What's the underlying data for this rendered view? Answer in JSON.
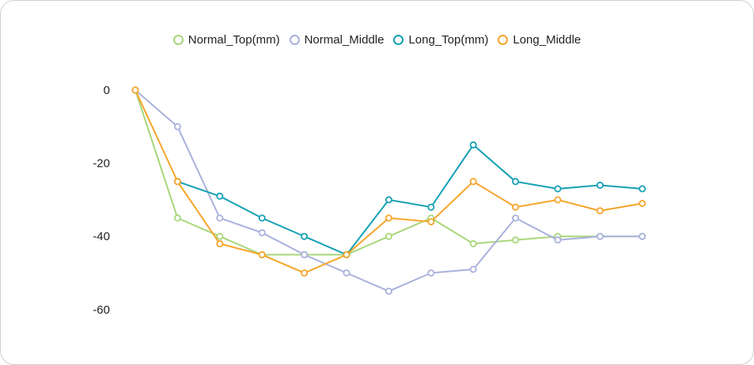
{
  "chart_data": {
    "type": "line",
    "title": "",
    "xlabel": "",
    "ylabel": "",
    "x": [
      1,
      2,
      3,
      4,
      5,
      6,
      7,
      8,
      9,
      10,
      11,
      12,
      13
    ],
    "ylim": [
      -70,
      5
    ],
    "yticks": [
      0,
      -20,
      -40,
      -60
    ],
    "yticks_text": [
      "0",
      "-20",
      "-40",
      "-60"
    ],
    "grid": false,
    "legend": "top",
    "series": [
      {
        "name": "Normal_Top(mm)",
        "color": "#a8d67a",
        "values": [
          0,
          -35,
          -40,
          -45,
          -45,
          -45,
          -40,
          -35,
          -42,
          -41,
          -40,
          -40,
          -40
        ]
      },
      {
        "name": "Normal_Middle",
        "color": "#a9b1dc",
        "values": [
          0,
          -10,
          -35,
          -39,
          -45,
          -50,
          -55,
          -50,
          -49,
          -35,
          -41,
          -40,
          -40
        ]
      },
      {
        "name": "Long_Top(mm)",
        "color": "#14a0b4",
        "values": [
          null,
          -25,
          -29,
          -35,
          -40,
          -45,
          -30,
          -32,
          -15,
          -25,
          -27,
          -26,
          -27
        ]
      },
      {
        "name": "Long_Middle",
        "color": "#f5a52a",
        "values": [
          0,
          -25,
          -42,
          -45,
          -50,
          -45,
          -35,
          -36,
          -25,
          -32,
          -30,
          -33,
          -31
        ]
      }
    ]
  }
}
